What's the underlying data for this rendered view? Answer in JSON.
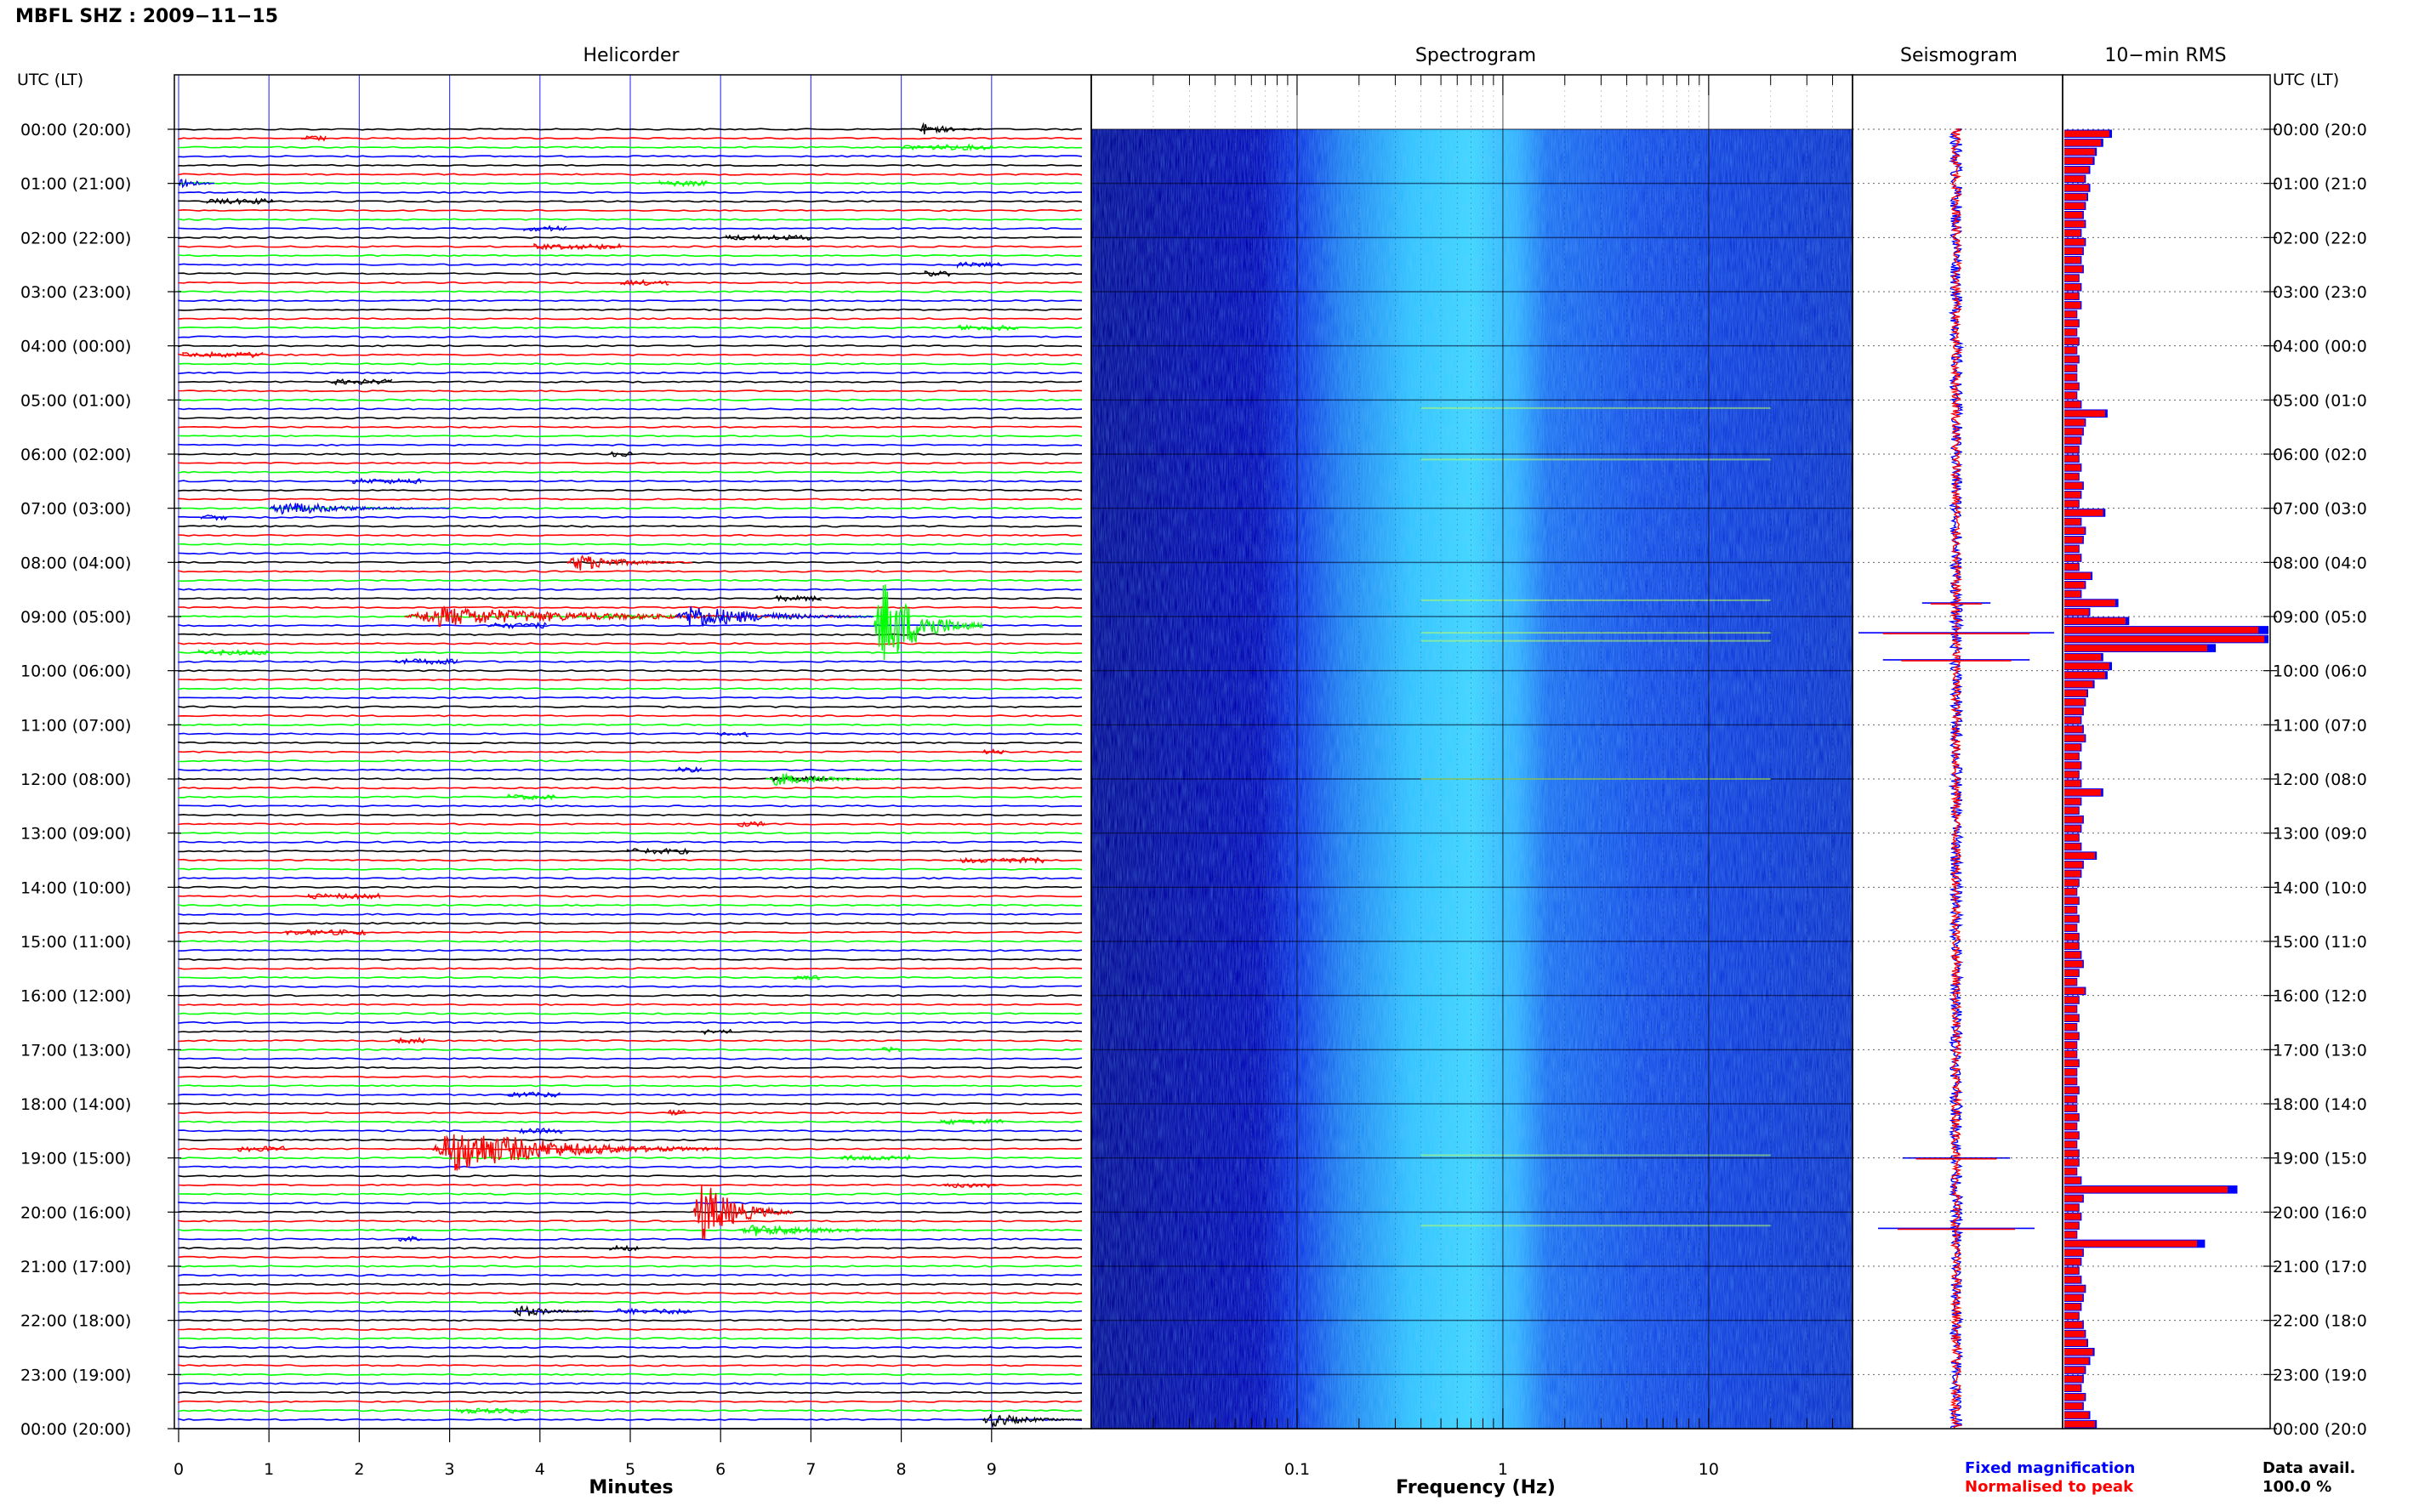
{
  "title": "MBFL SHZ : 2009−11−15",
  "panels": {
    "helicorder": "Helicorder",
    "spectrogram": "Spectrogram",
    "seismogram": "Seismogram",
    "rms": "10−min RMS"
  },
  "left_axis_header": "UTC (LT)",
  "right_axis_header": "UTC (LT)",
  "time_labels": [
    "00:00 (20:00)",
    "01:00 (21:00)",
    "02:00 (22:00)",
    "03:00 (23:00)",
    "04:00 (00:00)",
    "05:00 (01:00)",
    "06:00 (02:00)",
    "07:00 (03:00)",
    "08:00 (04:00)",
    "09:00 (05:00)",
    "10:00 (06:00)",
    "11:00 (07:00)",
    "12:00 (08:00)",
    "13:00 (09:00)",
    "14:00 (10:00)",
    "15:00 (11:00)",
    "16:00 (12:00)",
    "17:00 (13:00)",
    "18:00 (14:00)",
    "19:00 (15:00)",
    "20:00 (16:00)",
    "21:00 (17:00)",
    "22:00 (18:00)",
    "23:00 (19:00)",
    "00:00 (20:00)"
  ],
  "time_labels_right": [
    "00:00 (20:0",
    "01:00 (21:0",
    "02:00 (22:0",
    "03:00 (23:0",
    "04:00 (00:0",
    "05:00 (01:0",
    "06:00 (02:0",
    "07:00 (03:0",
    "08:00 (04:0",
    "09:00 (05:0",
    "10:00 (06:0",
    "11:00 (07:0",
    "12:00 (08:0",
    "13:00 (09:0",
    "14:00 (10:0",
    "15:00 (11:0",
    "16:00 (12:0",
    "17:00 (13:0",
    "18:00 (14:0",
    "19:00 (15:0",
    "20:00 (16:0",
    "21:00 (17:0",
    "22:00 (18:0",
    "23:00 (19:0",
    "00:00 (20:0"
  ],
  "legend": {
    "fixed": "Fixed magnification",
    "normalised": "Normalised to peak",
    "avail_label": "Data avail.",
    "avail_value": "100.0 %"
  },
  "colors": {
    "trace_cycle": [
      "#000000",
      "#ff0000",
      "#00ff00",
      "#0000ff"
    ],
    "fixed": "#0000ff",
    "normalised": "#ff0000",
    "spec_dark": "#0000aa",
    "spec_mid": "#1e5cff",
    "spec_bright": "#40d8ff"
  },
  "chart_data": [
    {
      "type": "line",
      "title": "Helicorder",
      "xlabel": "Minutes",
      "ylabel": "UTC (LT)",
      "xlim": [
        0,
        10
      ],
      "xticks": [
        "0",
        "1",
        "2",
        "3",
        "4",
        "5",
        "6",
        "7",
        "8",
        "9"
      ],
      "traces_per_hour": 6,
      "hours": 24,
      "events": [
        {
          "hour": 9,
          "trace": 1,
          "start_min": 7.7,
          "end_min": 8.9,
          "amp": 9.0,
          "color": "#00ff00"
        },
        {
          "hour": 9,
          "trace": 0,
          "start_min": 2.5,
          "end_min": 7.5,
          "amp": 2.0,
          "color": "#ff0000"
        },
        {
          "hour": 9,
          "trace": 0,
          "start_min": 5.5,
          "end_min": 7.7,
          "amp": 2.5,
          "color": "#0000ff"
        },
        {
          "hour": 8,
          "trace": 0,
          "start_min": 4.3,
          "end_min": 5.7,
          "amp": 1.8,
          "color": "#ff0000"
        },
        {
          "hour": 7,
          "trace": 0,
          "start_min": 1.0,
          "end_min": 3.0,
          "amp": 1.4,
          "color": "#0000ff"
        },
        {
          "hour": 1,
          "trace": 0,
          "start_min": 0.0,
          "end_min": 0.4,
          "amp": 1.6,
          "color": "#0000ff"
        },
        {
          "hour": 12,
          "trace": 0,
          "start_min": 6.5,
          "end_min": 8.0,
          "amp": 1.3,
          "color": "#00ff00"
        },
        {
          "hour": 18,
          "trace": 5,
          "start_min": 2.8,
          "end_min": 6.0,
          "amp": 4.5,
          "color": "#ff0000"
        },
        {
          "hour": 20,
          "trace": 0,
          "start_min": 5.7,
          "end_min": 6.8,
          "amp": 6.5,
          "color": "#ff0000"
        },
        {
          "hour": 20,
          "trace": 2,
          "start_min": 6.2,
          "end_min": 8.5,
          "amp": 1.2,
          "color": "#00ff00"
        },
        {
          "hour": 21,
          "trace": 5,
          "start_min": 3.7,
          "end_min": 4.6,
          "amp": 1.3,
          "color": "#000000"
        },
        {
          "hour": 23,
          "trace": 5,
          "start_min": 8.9,
          "end_min": 10.0,
          "amp": 1.5,
          "color": "#000000"
        },
        {
          "hour": 0,
          "trace": 0,
          "start_min": 8.2,
          "end_min": 8.9,
          "amp": 1.4,
          "color": "#000000"
        }
      ]
    },
    {
      "type": "heatmap",
      "title": "Spectrogram",
      "xlabel": "Frequency (Hz)",
      "xscale": "log",
      "xlim": [
        0.01,
        50
      ],
      "xticks": [
        "0.1",
        "1",
        "10"
      ],
      "colormap": "dark blue (low power) to cyan (high power)",
      "energy_band_hz": [
        0.2,
        2.0
      ],
      "energy_peak_hz": 0.9
    },
    {
      "type": "line",
      "title": "Seismogram",
      "legend": [
        "Fixed magnification",
        "Normalised to peak"
      ],
      "spikes": [
        {
          "hour": 8.75,
          "amplitude": 0.35
        },
        {
          "hour": 9.3,
          "amplitude": 1.0
        },
        {
          "hour": 9.8,
          "amplitude": 0.75
        },
        {
          "hour": 19.0,
          "amplitude": 0.55
        },
        {
          "hour": 20.3,
          "amplitude": 0.8
        }
      ]
    },
    {
      "type": "bar",
      "title": "10−min RMS",
      "orientation": "horizontal",
      "series": [
        {
          "name": "Fixed magnification",
          "color": "#0000ff"
        },
        {
          "name": "Normalised to peak",
          "color": "#ff0000"
        }
      ],
      "values": [
        0.22,
        0.18,
        0.15,
        0.14,
        0.12,
        0.1,
        0.12,
        0.11,
        0.1,
        0.09,
        0.1,
        0.08,
        0.1,
        0.09,
        0.08,
        0.09,
        0.07,
        0.08,
        0.07,
        0.08,
        0.06,
        0.07,
        0.06,
        0.07,
        0.06,
        0.07,
        0.06,
        0.06,
        0.07,
        0.06,
        0.08,
        0.2,
        0.1,
        0.09,
        0.08,
        0.07,
        0.07,
        0.08,
        0.07,
        0.09,
        0.08,
        0.07,
        0.19,
        0.08,
        0.1,
        0.09,
        0.07,
        0.08,
        0.07,
        0.13,
        0.1,
        0.08,
        0.25,
        0.12,
        0.3,
        0.95,
        0.98,
        0.7,
        0.18,
        0.22,
        0.2,
        0.14,
        0.11,
        0.1,
        0.09,
        0.08,
        0.09,
        0.1,
        0.08,
        0.07,
        0.08,
        0.07,
        0.08,
        0.18,
        0.08,
        0.07,
        0.09,
        0.08,
        0.07,
        0.08,
        0.15,
        0.09,
        0.08,
        0.07,
        0.06,
        0.07,
        0.06,
        0.07,
        0.06,
        0.07,
        0.07,
        0.08,
        0.09,
        0.07,
        0.06,
        0.1,
        0.07,
        0.06,
        0.07,
        0.06,
        0.07,
        0.06,
        0.06,
        0.07,
        0.06,
        0.06,
        0.07,
        0.06,
        0.06,
        0.07,
        0.06,
        0.07,
        0.06,
        0.07,
        0.07,
        0.06,
        0.08,
        0.8,
        0.09,
        0.07,
        0.08,
        0.07,
        0.06,
        0.65,
        0.09,
        0.08,
        0.07,
        0.08,
        0.1,
        0.09,
        0.08,
        0.07,
        0.09,
        0.1,
        0.11,
        0.14,
        0.12,
        0.1,
        0.09,
        0.08,
        0.1,
        0.09,
        0.12,
        0.15
      ]
    }
  ]
}
